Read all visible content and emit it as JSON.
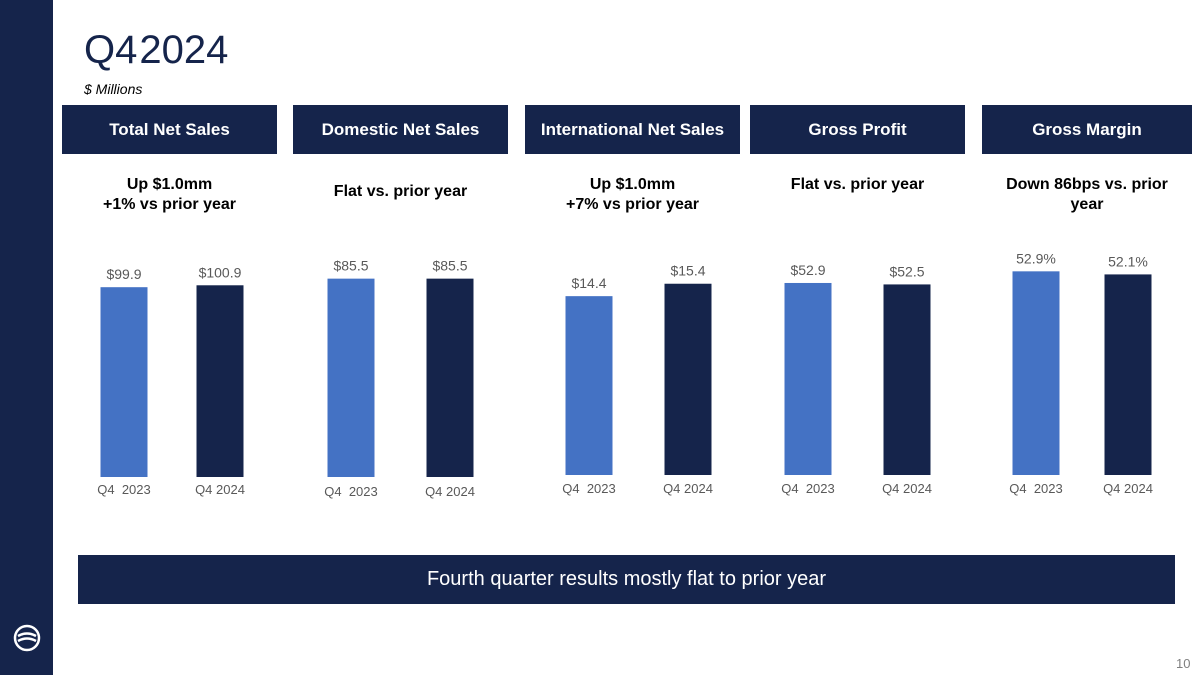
{
  "header": {
    "title_quarter": "Q4",
    "title_year": "2024",
    "subtitle": "$ Millions"
  },
  "panels": [
    {
      "header": "Total Net Sales",
      "note": "Up $1.0mm\n+1% vs prior year"
    },
    {
      "header": "Domestic Net Sales",
      "note": "Flat vs. prior year"
    },
    {
      "header": "International Net Sales",
      "note": "Up $1.0mm\n+7% vs prior year"
    },
    {
      "header": "Gross Profit",
      "note": "Flat vs. prior year"
    },
    {
      "header": "Gross Margin",
      "note": "Down 86bps vs. prior year"
    }
  ],
  "chart_data": [
    {
      "type": "bar",
      "categories": [
        "Q4  2023",
        "Q4 2024"
      ],
      "values": [
        99.9,
        100.9
      ],
      "data_labels": [
        "$99.9",
        "$100.9"
      ],
      "colors": [
        "#4472c4",
        "#15244b"
      ]
    },
    {
      "type": "bar",
      "categories": [
        "Q4  2023",
        "Q4 2024"
      ],
      "values": [
        85.5,
        85.5
      ],
      "data_labels": [
        "$85.5",
        "$85.5"
      ],
      "colors": [
        "#4472c4",
        "#15244b"
      ]
    },
    {
      "type": "bar",
      "categories": [
        "Q4  2023",
        "Q4 2024"
      ],
      "values": [
        14.4,
        15.4
      ],
      "data_labels": [
        "$14.4",
        "$15.4"
      ],
      "colors": [
        "#4472c4",
        "#15244b"
      ]
    },
    {
      "type": "bar",
      "categories": [
        "Q4  2023",
        "Q4 2024"
      ],
      "values": [
        52.9,
        52.5
      ],
      "data_labels": [
        "$52.9",
        "$52.5"
      ],
      "colors": [
        "#4472c4",
        "#15244b"
      ]
    },
    {
      "type": "bar",
      "categories": [
        "Q4  2023",
        "Q4 2024"
      ],
      "values": [
        52.9,
        52.1
      ],
      "data_labels": [
        "52.9%",
        "52.1%"
      ],
      "colors": [
        "#4472c4",
        "#15244b"
      ]
    }
  ],
  "summary": "Fourth quarter results mostly flat to prior year",
  "page_number": "10",
  "colors": {
    "navy": "#15244b",
    "blue": "#4472c4",
    "label_gray": "#595959"
  }
}
